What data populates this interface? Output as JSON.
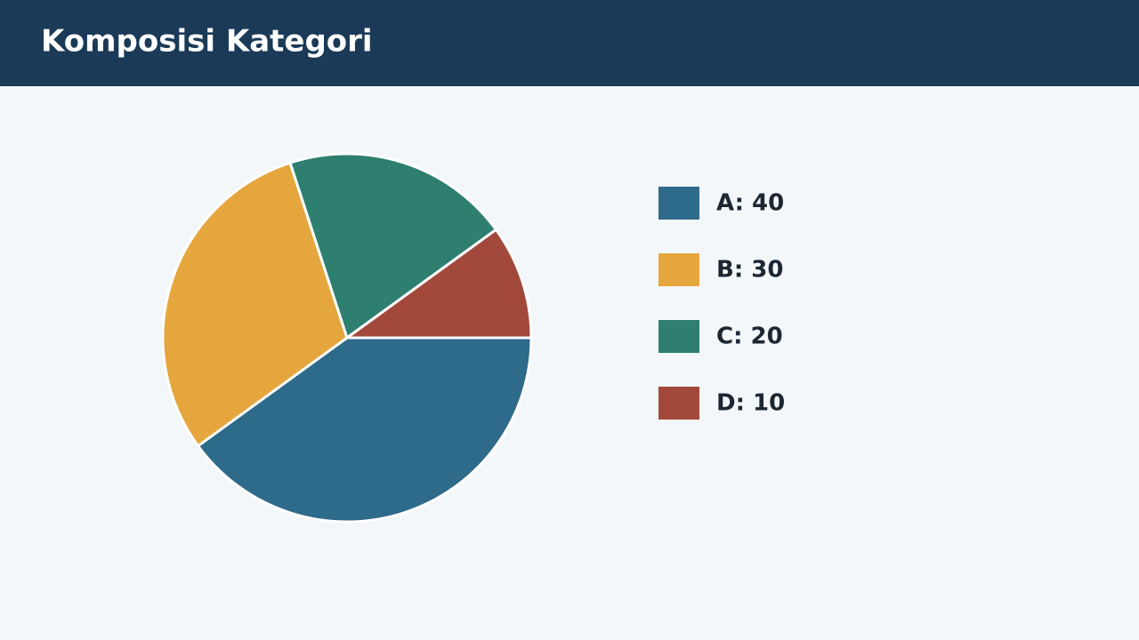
{
  "chart_data": {
    "type": "pie",
    "title": "Komposisi Kategori",
    "categories": [
      "A: 40",
      "B: 30",
      "C: 20",
      "D: 10"
    ],
    "values": [
      40,
      30,
      20,
      10
    ],
    "colors": [
      "#2e6a8a",
      "#e6a63e",
      "#2e7f70",
      "#a3493b"
    ],
    "legend": "right"
  }
}
